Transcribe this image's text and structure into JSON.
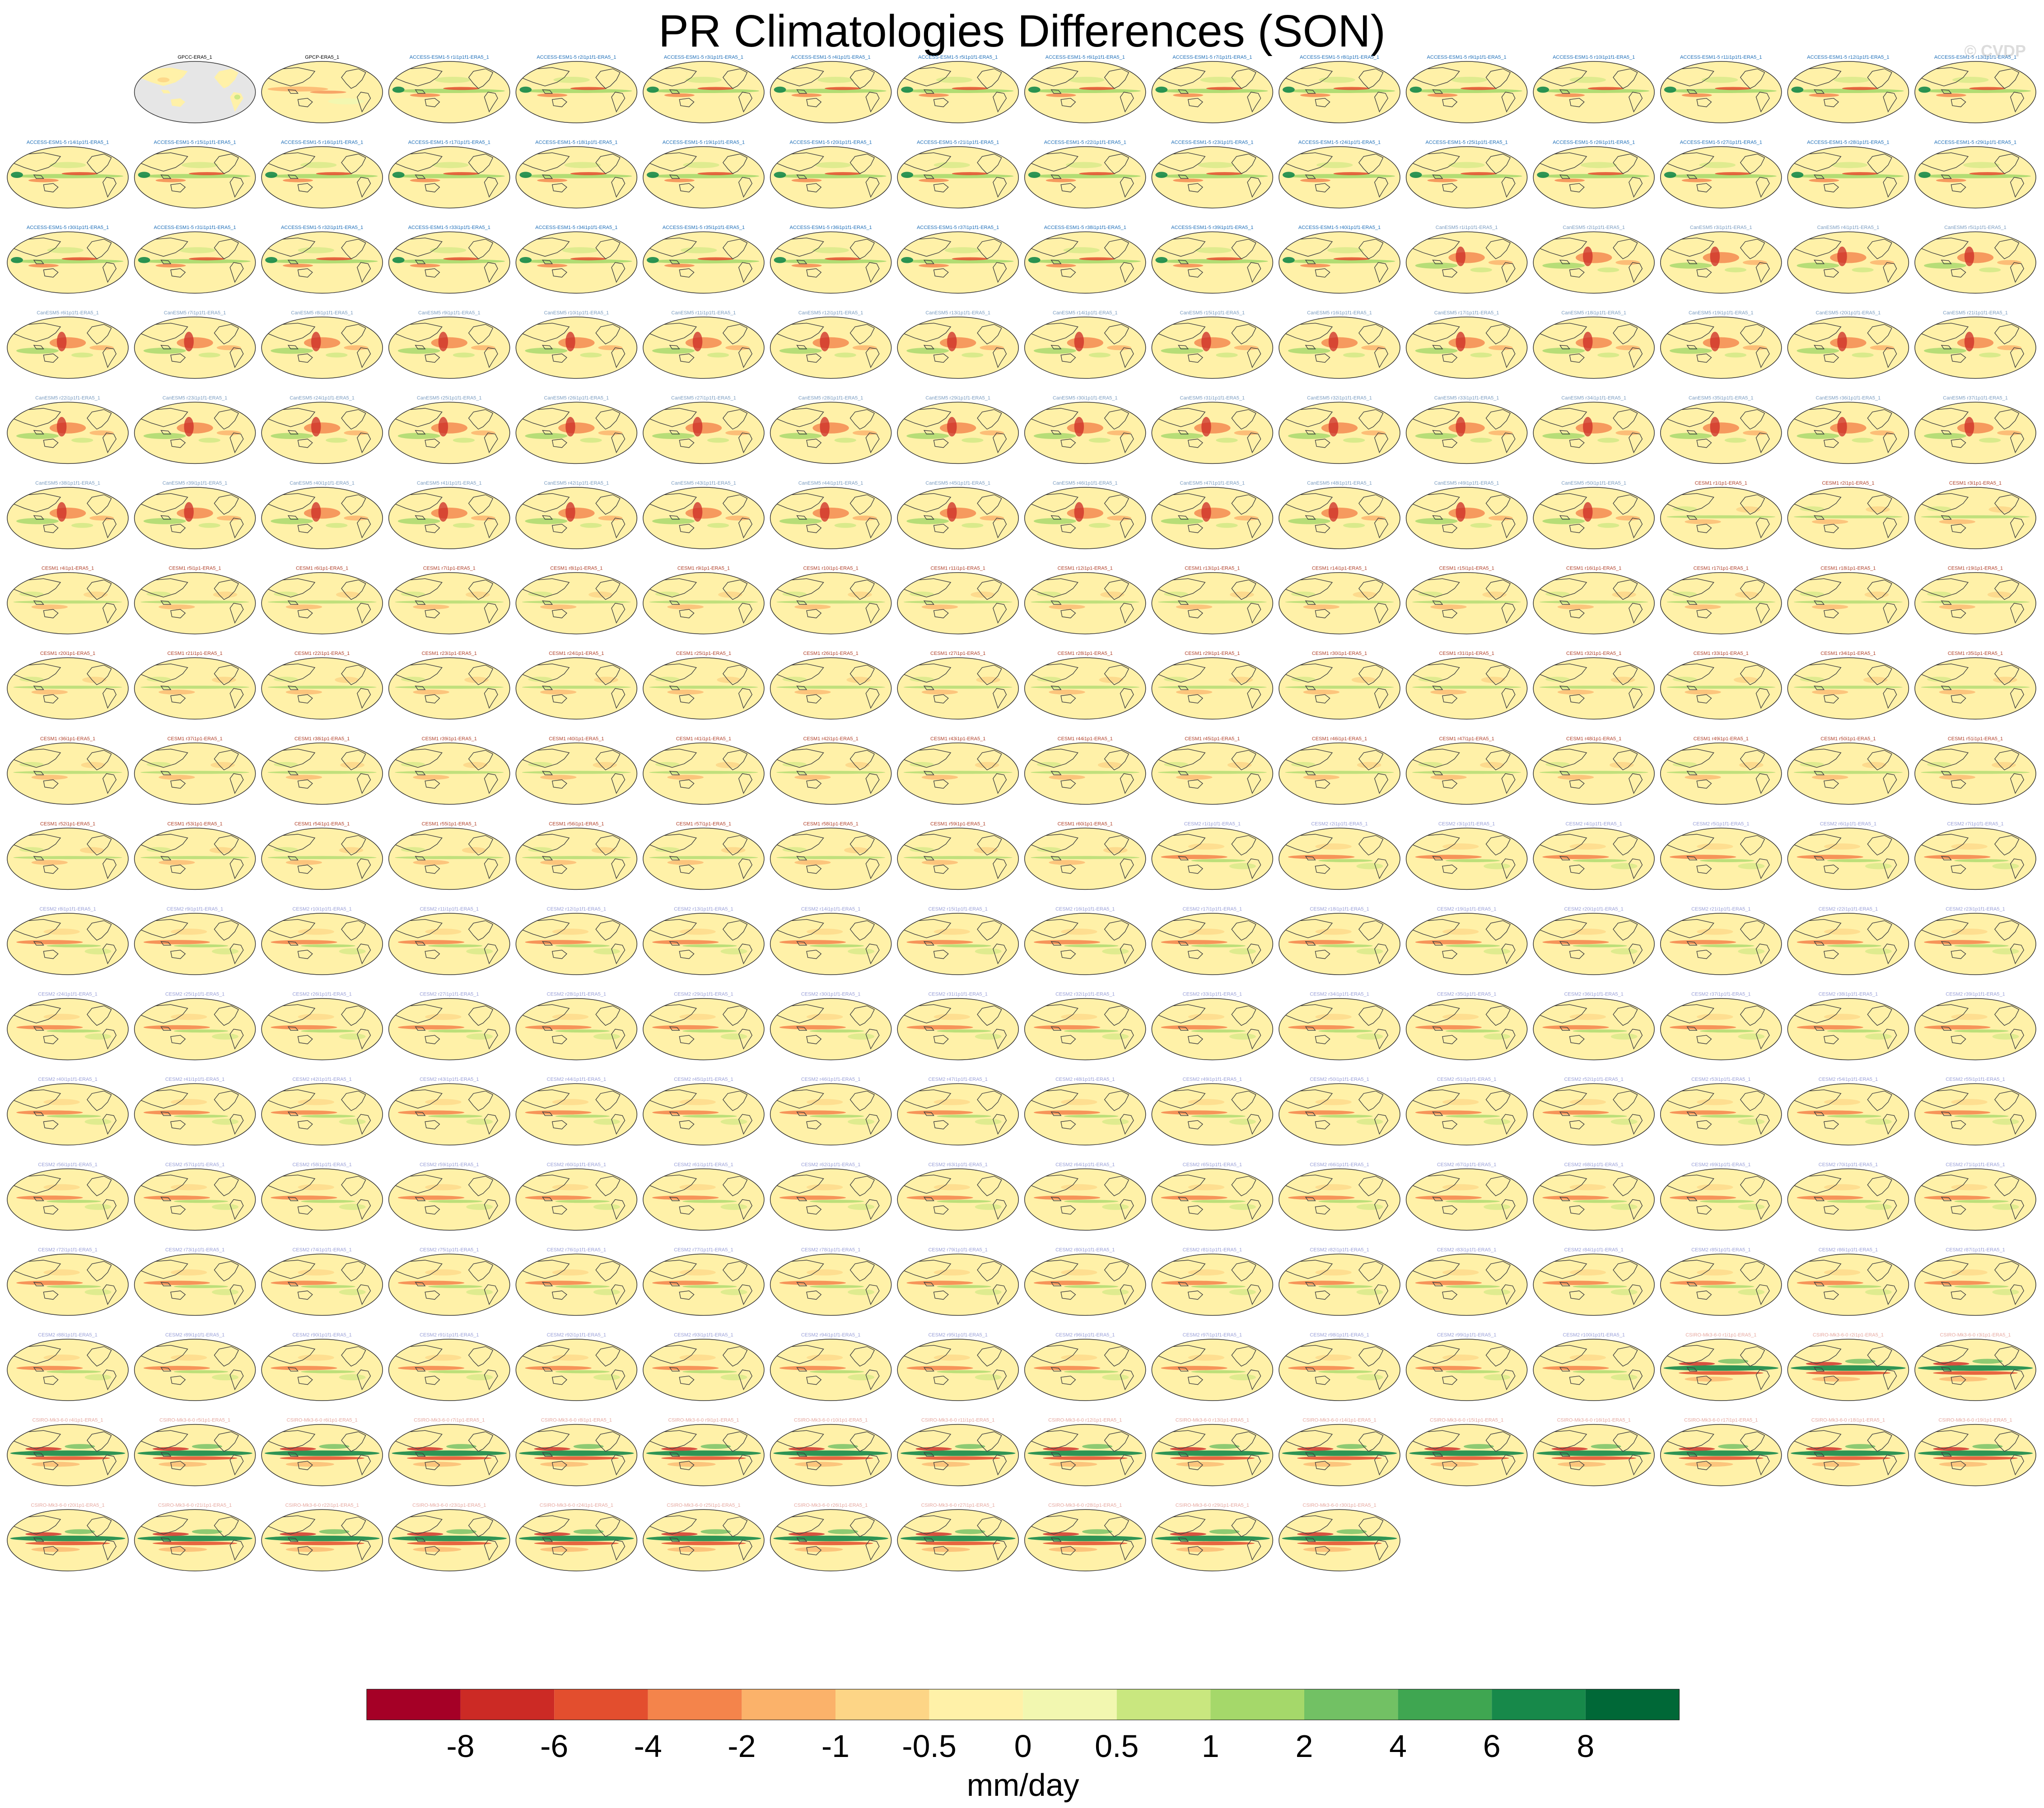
{
  "title": "PR Climatologies Differences (SON)",
  "watermark": "© CVDP",
  "colors": {
    "background": "#ffffff",
    "ocean_missing": "#e6e6e6",
    "coast": "#404040",
    "label_obs": "#000000",
    "label_access": "#1f6fb8",
    "label_canesm": "#7a9cc0",
    "label_cesm1_faint": "#d8c27a",
    "label_cesm1": "#b0402a",
    "label_cesm2": "#9aa0d8",
    "label_csiro": "#e6a8a0"
  },
  "chart_data": {
    "type": "heatmap",
    "grid": {
      "rows": 18,
      "cols": 16,
      "projection": "robinson"
    },
    "first_row_offset": 1,
    "panel_labels": [
      "GPCC-ERA5_1",
      "GPCP-ERA5_1",
      "ACCESS-ESM1-5 r1i1p1f1-ERA5_1",
      "ACCESS-ESM1-5 r2i1p1f1-ERA5_1",
      "ACCESS-ESM1-5 r3i1p1f1-ERA5_1",
      "ACCESS-ESM1-5 r4i1p1f1-ERA5_1",
      "ACCESS-ESM1-5 r5i1p1f1-ERA5_1",
      "ACCESS-ESM1-5 r6i1p1f1-ERA5_1",
      "ACCESS-ESM1-5 r7i1p1f1-ERA5_1",
      "ACCESS-ESM1-5 r8i1p1f1-ERA5_1",
      "ACCESS-ESM1-5 r9i1p1f1-ERA5_1",
      "ACCESS-ESM1-5 r10i1p1f1-ERA5_1",
      "ACCESS-ESM1-5 r11i1p1f1-ERA5_1",
      "ACCESS-ESM1-5 r12i1p1f1-ERA5_1",
      "ACCESS-ESM1-5 r13i1p1f1-ERA5_1",
      "ACCESS-ESM1-5 r14i1p1f1-ERA5_1",
      "ACCESS-ESM1-5 r15i1p1f1-ERA5_1",
      "ACCESS-ESM1-5 r16i1p1f1-ERA5_1",
      "ACCESS-ESM1-5 r17i1p1f1-ERA5_1",
      "ACCESS-ESM1-5 r18i1p1f1-ERA5_1",
      "ACCESS-ESM1-5 r19i1p1f1-ERA5_1",
      "ACCESS-ESM1-5 r20i1p1f1-ERA5_1",
      "ACCESS-ESM1-5 r21i1p1f1-ERA5_1",
      "ACCESS-ESM1-5 r22i1p1f1-ERA5_1",
      "ACCESS-ESM1-5 r23i1p1f1-ERA5_1",
      "ACCESS-ESM1-5 r24i1p1f1-ERA5_1",
      "ACCESS-ESM1-5 r25i1p1f1-ERA5_1",
      "ACCESS-ESM1-5 r26i1p1f1-ERA5_1",
      "ACCESS-ESM1-5 r27i1p1f1-ERA5_1",
      "ACCESS-ESM1-5 r28i1p1f1-ERA5_1",
      "ACCESS-ESM1-5 r29i1p1f1-ERA5_1",
      "ACCESS-ESM1-5 r30i1p1f1-ERA5_1",
      "ACCESS-ESM1-5 r31i1p1f1-ERA5_1",
      "ACCESS-ESM1-5 r32i1p1f1-ERA5_1",
      "ACCESS-ESM1-5 r33i1p1f1-ERA5_1",
      "ACCESS-ESM1-5 r34i1p1f1-ERA5_1",
      "ACCESS-ESM1-5 r35i1p1f1-ERA5_1",
      "ACCESS-ESM1-5 r36i1p1f1-ERA5_1",
      "ACCESS-ESM1-5 r37i1p1f1-ERA5_1",
      "ACCESS-ESM1-5 r38i1p1f1-ERA5_1",
      "ACCESS-ESM1-5 r39i1p1f1-ERA5_1",
      "ACCESS-ESM1-5 r40i1p1f1-ERA5_1",
      "CanESM5 r1i1p1f1-ERA5_1",
      "CanESM5 r2i1p1f1-ERA5_1",
      "CanESM5 r3i1p1f1-ERA5_1",
      "CanESM5 r4i1p1f1-ERA5_1",
      "CanESM5 r5i1p1f1-ERA5_1",
      "CanESM5 r6i1p1f1-ERA5_1",
      "CanESM5 r7i1p1f1-ERA5_1",
      "CanESM5 r8i1p1f1-ERA5_1",
      "CanESM5 r9i1p1f1-ERA5_1",
      "CanESM5 r10i1p1f1-ERA5_1",
      "CanESM5 r11i1p1f1-ERA5_1",
      "CanESM5 r12i1p1f1-ERA5_1",
      "CanESM5 r13i1p1f1-ERA5_1",
      "CanESM5 r14i1p1f1-ERA5_1",
      "CanESM5 r15i1p1f1-ERA5_1",
      "CanESM5 r16i1p1f1-ERA5_1",
      "CanESM5 r17i1p1f1-ERA5_1",
      "CanESM5 r18i1p1f1-ERA5_1",
      "CanESM5 r19i1p1f1-ERA5_1",
      "CanESM5 r20i1p1f1-ERA5_1",
      "CanESM5 r21i1p1f1-ERA5_1",
      "CanESM5 r22i1p1f1-ERA5_1",
      "CanESM5 r23i1p1f1-ERA5_1",
      "CanESM5 r24i1p1f1-ERA5_1",
      "CanESM5 r25i1p1f1-ERA5_1",
      "CanESM5 r26i1p1f1-ERA5_1",
      "CanESM5 r27i1p1f1-ERA5_1",
      "CanESM5 r28i1p1f1-ERA5_1",
      "CanESM5 r29i1p1f1-ERA5_1",
      "CanESM5 r30i1p1f1-ERA5_1",
      "CanESM5 r31i1p1f1-ERA5_1",
      "CanESM5 r32i1p1f1-ERA5_1",
      "CanESM5 r33i1p1f1-ERA5_1",
      "CanESM5 r34i1p1f1-ERA5_1",
      "CanESM5 r35i1p1f1-ERA5_1",
      "CanESM5 r36i1p1f1-ERA5_1",
      "CanESM5 r37i1p1f1-ERA5_1",
      "CanESM5 r38i1p1f1-ERA5_1",
      "CanESM5 r39i1p1f1-ERA5_1",
      "CanESM5 r40i1p1f1-ERA5_1",
      "CanESM5 r41i1p1f1-ERA5_1",
      "CanESM5 r42i1p1f1-ERA5_1",
      "CanESM5 r43i1p1f1-ERA5_1",
      "CanESM5 r44i1p1f1-ERA5_1",
      "CanESM5 r45i1p1f1-ERA5_1",
      "CanESM5 r46i1p1f1-ERA5_1",
      "CanESM5 r47i1p1f1-ERA5_1",
      "CanESM5 r48i1p1f1-ERA5_1",
      "CanESM5 r49i1p1f1-ERA5_1",
      "CanESM5 r50i1p1f1-ERA5_1",
      "CESM1 r1i1p1-ERA5_1",
      "CESM1 r2i1p1-ERA5_1",
      "CESM1 r3i1p1-ERA5_1",
      "CESM1 r4i1p1-ERA5_1",
      "CESM1 r5i1p1-ERA5_1",
      "CESM1 r6i1p1-ERA5_1",
      "CESM1 r7i1p1-ERA5_1",
      "CESM1 r8i1p1-ERA5_1",
      "CESM1 r9i1p1-ERA5_1",
      "CESM1 r10i1p1-ERA5_1",
      "CESM1 r11i1p1-ERA5_1",
      "CESM1 r12i1p1-ERA5_1",
      "CESM1 r13i1p1-ERA5_1",
      "CESM1 r14i1p1-ERA5_1",
      "CESM1 r15i1p1-ERA5_1",
      "CESM1 r16i1p1-ERA5_1",
      "CESM1 r17i1p1-ERA5_1",
      "CESM1 r18i1p1-ERA5_1",
      "CESM1 r19i1p1-ERA5_1",
      "CESM1 r20i1p1-ERA5_1",
      "CESM1 r21i1p1-ERA5_1",
      "CESM1 r22i1p1-ERA5_1",
      "CESM1 r23i1p1-ERA5_1",
      "CESM1 r24i1p1-ERA5_1",
      "CESM1 r25i1p1-ERA5_1",
      "CESM1 r26i1p1-ERA5_1",
      "CESM1 r27i1p1-ERA5_1",
      "CESM1 r28i1p1-ERA5_1",
      "CESM1 r29i1p1-ERA5_1",
      "CESM1 r30i1p1-ERA5_1",
      "CESM1 r31i1p1-ERA5_1",
      "CESM1 r32i1p1-ERA5_1",
      "CESM1 r33i1p1-ERA5_1",
      "CESM1 r34i1p1-ERA5_1",
      "CESM1 r35i1p1-ERA5_1",
      "CESM1 r36i1p1-ERA5_1",
      "CESM1 r37i1p1-ERA5_1",
      "CESM1 r38i1p1-ERA5_1",
      "CESM1 r39i1p1-ERA5_1",
      "CESM1 r40i1p1-ERA5_1",
      "CESM1 r41i1p1-ERA5_1",
      "CESM1 r42i1p1-ERA5_1",
      "CESM1 r43i1p1-ERA5_1",
      "CESM1 r44i1p1-ERA5_1",
      "CESM1 r45i1p1-ERA5_1",
      "CESM1 r46i1p1-ERA5_1",
      "CESM1 r47i1p1-ERA5_1",
      "CESM1 r48i1p1-ERA5_1",
      "CESM1 r49i1p1-ERA5_1",
      "CESM1 r50i1p1-ERA5_1",
      "CESM1 r51i1p1-ERA5_1",
      "CESM1 r52i1p1-ERA5_1",
      "CESM1 r53i1p1-ERA5_1",
      "CESM1 r54i1p1-ERA5_1",
      "CESM1 r55i1p1-ERA5_1",
      "CESM1 r56i1p1-ERA5_1",
      "CESM1 r57i1p1-ERA5_1",
      "CESM1 r58i1p1-ERA5_1",
      "CESM1 r59i1p1-ERA5_1",
      "CESM1 r60i1p1-ERA5_1",
      "CESM2 r1i1p1f1-ERA5_1",
      "CESM2 r2i1p1f1-ERA5_1",
      "CESM2 r3i1p1f1-ERA5_1",
      "CESM2 r4i1p1f1-ERA5_1",
      "CESM2 r5i1p1f1-ERA5_1",
      "CESM2 r6i1p1f1-ERA5_1",
      "CESM2 r7i1p1f1-ERA5_1",
      "CESM2 r8i1p1f1-ERA5_1",
      "CESM2 r9i1p1f1-ERA5_1",
      "CESM2 r10i1p1f1-ERA5_1",
      "CESM2 r11i1p1f1-ERA5_1",
      "CESM2 r12i1p1f1-ERA5_1",
      "CESM2 r13i1p1f1-ERA5_1",
      "CESM2 r14i1p1f1-ERA5_1",
      "CESM2 r15i1p1f1-ERA5_1",
      "CESM2 r16i1p1f1-ERA5_1",
      "CESM2 r17i1p1f1-ERA5_1",
      "CESM2 r18i1p1f1-ERA5_1",
      "CESM2 r19i1p1f1-ERA5_1",
      "CESM2 r20i1p1f1-ERA5_1",
      "CESM2 r21i1p1f1-ERA5_1",
      "CESM2 r22i1p1f1-ERA5_1",
      "CESM2 r23i1p1f1-ERA5_1",
      "CESM2 r24i1p1f1-ERA5_1",
      "CESM2 r25i1p1f1-ERA5_1",
      "CESM2 r26i1p1f1-ERA5_1",
      "CESM2 r27i1p1f1-ERA5_1",
      "CESM2 r28i1p1f1-ERA5_1",
      "CESM2 r29i1p1f1-ERA5_1",
      "CESM2 r30i1p1f1-ERA5_1",
      "CESM2 r31i1p1f1-ERA5_1",
      "CESM2 r32i1p1f1-ERA5_1",
      "CESM2 r33i1p1f1-ERA5_1",
      "CESM2 r34i1p1f1-ERA5_1",
      "CESM2 r35i1p1f1-ERA5_1",
      "CESM2 r36i1p1f1-ERA5_1",
      "CESM2 r37i1p1f1-ERA5_1",
      "CESM2 r38i1p1f1-ERA5_1",
      "CESM2 r39i1p1f1-ERA5_1",
      "CESM2 r40i1p1f1-ERA5_1",
      "CESM2 r41i1p1f1-ERA5_1",
      "CESM2 r42i1p1f1-ERA5_1",
      "CESM2 r43i1p1f1-ERA5_1",
      "CESM2 r44i1p1f1-ERA5_1",
      "CESM2 r45i1p1f1-ERA5_1",
      "CESM2 r46i1p1f1-ERA5_1",
      "CESM2 r47i1p1f1-ERA5_1",
      "CESM2 r48i1p1f1-ERA5_1",
      "CESM2 r49i1p1f1-ERA5_1",
      "CESM2 r50i1p1f1-ERA5_1",
      "CESM2 r51i1p1f1-ERA5_1",
      "CESM2 r52i1p1f1-ERA5_1",
      "CESM2 r53i1p1f1-ERA5_1",
      "CESM2 r54i1p1f1-ERA5_1",
      "CESM2 r55i1p1f1-ERA5_1",
      "CESM2 r56i1p1f1-ERA5_1",
      "CESM2 r57i1p1f1-ERA5_1",
      "CESM2 r58i1p1f1-ERA5_1",
      "CESM2 r59i1p1f1-ERA5_1",
      "CESM2 r60i1p1f1-ERA5_1",
      "CESM2 r61i1p1f1-ERA5_1",
      "CESM2 r62i1p1f1-ERA5_1",
      "CESM2 r63i1p1f1-ERA5_1",
      "CESM2 r64i1p1f1-ERA5_1",
      "CESM2 r65i1p1f1-ERA5_1",
      "CESM2 r66i1p1f1-ERA5_1",
      "CESM2 r67i1p1f1-ERA5_1",
      "CESM2 r68i1p1f1-ERA5_1",
      "CESM2 r69i1p1f1-ERA5_1",
      "CESM2 r70i1p1f1-ERA5_1",
      "CESM2 r71i1p1f1-ERA5_1",
      "CESM2 r72i1p1f1-ERA5_1",
      "CESM2 r73i1p1f1-ERA5_1",
      "CESM2 r74i1p1f1-ERA5_1",
      "CESM2 r75i1p1f1-ERA5_1",
      "CESM2 r76i1p1f1-ERA5_1",
      "CESM2 r77i1p1f1-ERA5_1",
      "CESM2 r78i1p1f1-ERA5_1",
      "CESM2 r79i1p1f1-ERA5_1",
      "CESM2 r80i1p1f1-ERA5_1",
      "CESM2 r81i1p1f1-ERA5_1",
      "CESM2 r82i1p1f1-ERA5_1",
      "CESM2 r83i1p1f1-ERA5_1",
      "CESM2 r84i1p1f1-ERA5_1",
      "CESM2 r85i1p1f1-ERA5_1",
      "CESM2 r86i1p1f1-ERA5_1",
      "CESM2 r87i1p1f1-ERA5_1",
      "CESM2 r88i1p1f1-ERA5_1",
      "CESM2 r89i1p1f1-ERA5_1",
      "CESM2 r90i1p1f1-ERA5_1",
      "CESM2 r91i1p1f1-ERA5_1",
      "CESM2 r92i1p1f1-ERA5_1",
      "CESM2 r93i1p1f1-ERA5_1",
      "CESM2 r94i1p1f1-ERA5_1",
      "CESM2 r95i1p1f1-ERA5_1",
      "CESM2 r96i1p1f1-ERA5_1",
      "CESM2 r97i1p1f1-ERA5_1",
      "CESM2 r98i1p1f1-ERA5_1",
      "CESM2 r99i1p1f1-ERA5_1",
      "CESM2 r100i1p1f1-ERA5_1",
      "CSIRO-Mk3-6-0 r1i1p1-ERA5_1",
      "CSIRO-Mk3-6-0 r2i1p1-ERA5_1",
      "CSIRO-Mk3-6-0 r3i1p1-ERA5_1",
      "CSIRO-Mk3-6-0 r4i1p1-ERA5_1",
      "CSIRO-Mk3-6-0 r5i1p1-ERA5_1",
      "CSIRO-Mk3-6-0 r6i1p1-ERA5_1",
      "CSIRO-Mk3-6-0 r7i1p1-ERA5_1",
      "CSIRO-Mk3-6-0 r8i1p1-ERA5_1",
      "CSIRO-Mk3-6-0 r9i1p1-ERA5_1",
      "CSIRO-Mk3-6-0 r10i1p1-ERA5_1",
      "CSIRO-Mk3-6-0 r11i1p1-ERA5_1",
      "CSIRO-Mk3-6-0 r12i1p1-ERA5_1",
      "CSIRO-Mk3-6-0 r13i1p1-ERA5_1",
      "CSIRO-Mk3-6-0 r14i1p1-ERA5_1",
      "CSIRO-Mk3-6-0 r15i1p1-ERA5_1",
      "CSIRO-Mk3-6-0 r16i1p1-ERA5_1",
      "CSIRO-Mk3-6-0 r17i1p1-ERA5_1",
      "CSIRO-Mk3-6-0 r18i1p1-ERA5_1",
      "CSIRO-Mk3-6-0 r19i1p1-ERA5_1",
      "CSIRO-Mk3-6-0 r20i1p1-ERA5_1",
      "CSIRO-Mk3-6-0 r21i1p1-ERA5_1",
      "CSIRO-Mk3-6-0 r22i1p1-ERA5_1",
      "CSIRO-Mk3-6-0 r23i1p1-ERA5_1",
      "CSIRO-Mk3-6-0 r24i1p1-ERA5_1",
      "CSIRO-Mk3-6-0 r25i1p1-ERA5_1",
      "CSIRO-Mk3-6-0 r26i1p1-ERA5_1",
      "CSIRO-Mk3-6-0 r27i1p1-ERA5_1",
      "CSIRO-Mk3-6-0 r28i1p1-ERA5_1",
      "CSIRO-Mk3-6-0 r29i1p1-ERA5_1",
      "CSIRO-Mk3-6-0 r30i1p1-ERA5_1"
    ],
    "colorbar": {
      "label": "mm/day",
      "tick_labels": [
        "-8",
        "-6",
        "-4",
        "-2",
        "-1",
        "-0.5",
        "0",
        "0.5",
        "1",
        "2",
        "4",
        "6",
        "8"
      ],
      "colors": [
        "#a50026",
        "#cc2a25",
        "#e34e2e",
        "#f4844b",
        "#fbb26a",
        "#fdd586",
        "#fff1a8",
        "#f2f7b0",
        "#c9e77f",
        "#a5d86a",
        "#72c164",
        "#3fa651",
        "#17894a",
        "#006837"
      ]
    }
  }
}
